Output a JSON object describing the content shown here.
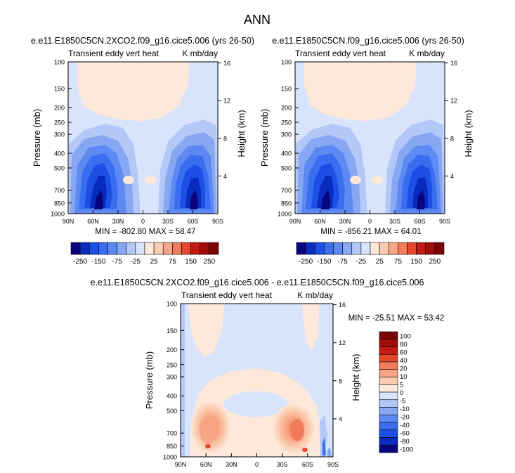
{
  "main_title": "ANN",
  "chart_data": [
    {
      "type": "contour",
      "title": "e.e11.E1850C5CN.2XCO2.f09_g16.cice5.006 (yrs 26-50)",
      "left_label": "Transient eddy vert heat",
      "right_label": "K mb/day",
      "ylabel": "Pressure (mb)",
      "ylabel_right": "Height (km)",
      "x_ticks": [
        "90N",
        "60N",
        "30N",
        "0",
        "30S",
        "60S",
        "90S"
      ],
      "y_ticks": [
        100,
        150,
        200,
        250,
        300,
        400,
        500,
        700,
        850,
        1000
      ],
      "y_right_ticks": [
        16,
        12,
        8,
        4
      ],
      "ylim": [
        1000,
        100
      ],
      "y_scale": "log",
      "min_max_text": "MIN = -802.80   MAX = 58.47",
      "levels": [
        -250,
        -200,
        -150,
        -100,
        -75,
        -50,
        -25,
        0,
        25,
        50,
        75,
        100,
        150,
        200,
        250
      ],
      "colorbar_labels": [
        "-250",
        "-150",
        "-75",
        "-25",
        "25",
        "75",
        "150",
        "250"
      ]
    },
    {
      "type": "contour",
      "title": "e.e11.E1850C5CN.f09_g16.cice5.006 (yrs 26-50)",
      "left_label": "Transient eddy vert heat",
      "right_label": "K mb/day",
      "ylabel": "Pressure (mb)",
      "ylabel_right": "Height (km)",
      "x_ticks": [
        "90N",
        "60N",
        "30N",
        "0",
        "30S",
        "60S",
        "90S"
      ],
      "y_ticks": [
        100,
        150,
        200,
        250,
        300,
        400,
        500,
        700,
        850,
        1000
      ],
      "y_right_ticks": [
        16,
        12,
        8,
        4
      ],
      "ylim": [
        1000,
        100
      ],
      "y_scale": "log",
      "min_max_text": "MIN = -856.21   MAX = 64.01",
      "levels": [
        -250,
        -200,
        -150,
        -100,
        -75,
        -50,
        -25,
        0,
        25,
        50,
        75,
        100,
        150,
        200,
        250
      ],
      "colorbar_labels": [
        "-250",
        "-150",
        "-75",
        "-25",
        "25",
        "75",
        "150",
        "250"
      ]
    },
    {
      "type": "contour",
      "title": "e.e11.E1850C5CN.2XCO2.f09_g16.cice5.006 - e.e11.E1850C5CN.f09_g16.cice5.006",
      "left_label": "Transient eddy vert heat",
      "right_label": "K mb/day",
      "ylabel": "Pressure (mb)",
      "ylabel_right": "Height (km)",
      "x_ticks": [
        "90N",
        "60N",
        "30N",
        "0",
        "30S",
        "60S",
        "90S"
      ],
      "y_ticks": [
        100,
        150,
        200,
        250,
        300,
        400,
        500,
        700,
        850,
        1000
      ],
      "y_right_ticks": [
        16,
        12,
        8,
        4
      ],
      "ylim": [
        1000,
        100
      ],
      "y_scale": "log",
      "min_max_text": "MIN = -25.51   MAX = 53.42",
      "colorbar_labels": [
        "100",
        "80",
        "60",
        "40",
        "20",
        "10",
        "5",
        "0",
        "-5",
        "-10",
        "-20",
        "-40",
        "-60",
        "-80",
        "-100"
      ]
    }
  ],
  "colors": {
    "blues": [
      "#08057d",
      "#0a2bbf",
      "#1b4fe5",
      "#3a6df0",
      "#5d8af2",
      "#87a7f3",
      "#b3c8f7",
      "#d7e4fb"
    ],
    "reds": [
      "#fde8da",
      "#fbcdb2",
      "#f7a584",
      "#f27c5a",
      "#e4472c",
      "#c21a10",
      "#a00d0a",
      "#7d0404"
    ]
  }
}
